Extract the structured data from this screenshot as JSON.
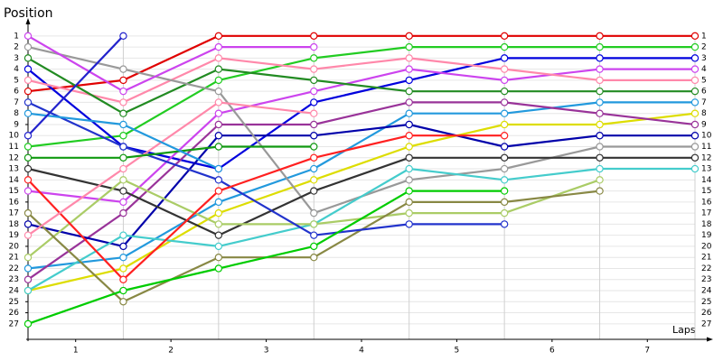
{
  "chart_data": {
    "type": "line",
    "y_axis_label": "Position",
    "x_axis_label": "Laps",
    "x": [
      0,
      1,
      2,
      3,
      4,
      5,
      6,
      7
    ],
    "xlim": [
      0,
      7
    ],
    "xticks": [
      {
        "value": 0.5,
        "label": "1"
      },
      {
        "value": 1.5,
        "label": "2"
      },
      {
        "value": 2.5,
        "label": "3"
      },
      {
        "value": 3.5,
        "label": "4"
      },
      {
        "value": 4.5,
        "label": "5"
      },
      {
        "value": 5.5,
        "label": "6"
      },
      {
        "value": 6.5,
        "label": "7"
      }
    ],
    "ylim": [
      0.2,
      28.4
    ],
    "y_inverted": true,
    "yticks": [
      1,
      2,
      3,
      4,
      5,
      6,
      7,
      8,
      9,
      10,
      11,
      12,
      13,
      14,
      15,
      16,
      17,
      18,
      19,
      20,
      21,
      22,
      23,
      24,
      25,
      26,
      27
    ],
    "grid": true,
    "series": [
      {
        "color": "#e00000",
        "values": [
          6,
          5,
          1,
          1,
          1,
          1,
          1,
          1
        ]
      },
      {
        "color": "#22cc22",
        "values": [
          11,
          10,
          5,
          3,
          2,
          2,
          2,
          2
        ]
      },
      {
        "color": "#0000dd",
        "values": [
          4,
          11,
          13,
          7,
          5,
          3,
          3,
          3
        ]
      },
      {
        "color": "#cc44ee",
        "values": [
          15,
          16,
          8,
          6,
          4,
          5,
          4,
          4
        ]
      },
      {
        "color": "#ff88aa",
        "values": [
          5,
          7,
          3,
          4,
          3,
          4,
          5,
          5
        ]
      },
      {
        "color": "#228b22",
        "values": [
          3,
          8,
          4,
          5,
          6,
          6,
          6,
          6
        ]
      },
      {
        "color": "#2299dd",
        "values": [
          22,
          21,
          16,
          13,
          8,
          8,
          7,
          7
        ]
      },
      {
        "color": "#dddd00",
        "values": [
          24,
          22,
          17,
          14,
          11,
          9,
          9,
          8
        ]
      },
      {
        "color": "#993399",
        "values": [
          23,
          17,
          9,
          9,
          7,
          7,
          8,
          9
        ]
      },
      {
        "color": "#0000aa",
        "values": [
          18,
          20,
          10,
          10,
          9,
          11,
          10,
          10
        ]
      },
      {
        "color": "#999999",
        "values": [
          2,
          4,
          6,
          17,
          14,
          13,
          11,
          11
        ]
      },
      {
        "color": "#333333",
        "values": [
          13,
          15,
          19,
          15,
          12,
          12,
          12,
          12
        ]
      },
      {
        "color": "#44cccc",
        "values": [
          24,
          19,
          20,
          18,
          13,
          14,
          13,
          13
        ]
      },
      {
        "color": "#aacc66",
        "values": [
          21,
          14,
          18,
          18,
          17,
          17,
          14,
          null
        ]
      },
      {
        "color": "#888844",
        "values": [
          17,
          25,
          21,
          21,
          16,
          16,
          15,
          null
        ]
      },
      {
        "color": "#2233cc",
        "values": [
          7,
          11,
          14,
          19,
          18,
          18,
          null,
          null
        ]
      },
      {
        "color": "#ff2020",
        "values": [
          14,
          23,
          15,
          12,
          10,
          10,
          null,
          null
        ]
      },
      {
        "color": "#00cc00",
        "values": [
          27,
          24,
          22,
          20,
          15,
          15,
          null,
          null
        ]
      },
      {
        "color": "#cc44ee",
        "values": [
          1,
          6,
          2,
          2,
          null,
          null,
          null,
          null
        ]
      },
      {
        "color": "#ff88aa",
        "values": [
          19,
          13,
          7,
          8,
          null,
          null,
          null,
          null
        ]
      },
      {
        "color": "#119911",
        "values": [
          12,
          12,
          11,
          11,
          null,
          null,
          null,
          null
        ]
      },
      {
        "color": "#2299dd",
        "values": [
          8,
          9,
          13,
          null,
          null,
          null,
          null,
          null
        ]
      },
      {
        "color": "#2222cc",
        "values": [
          10,
          1,
          null,
          null,
          null,
          null,
          null,
          null
        ]
      }
    ]
  }
}
